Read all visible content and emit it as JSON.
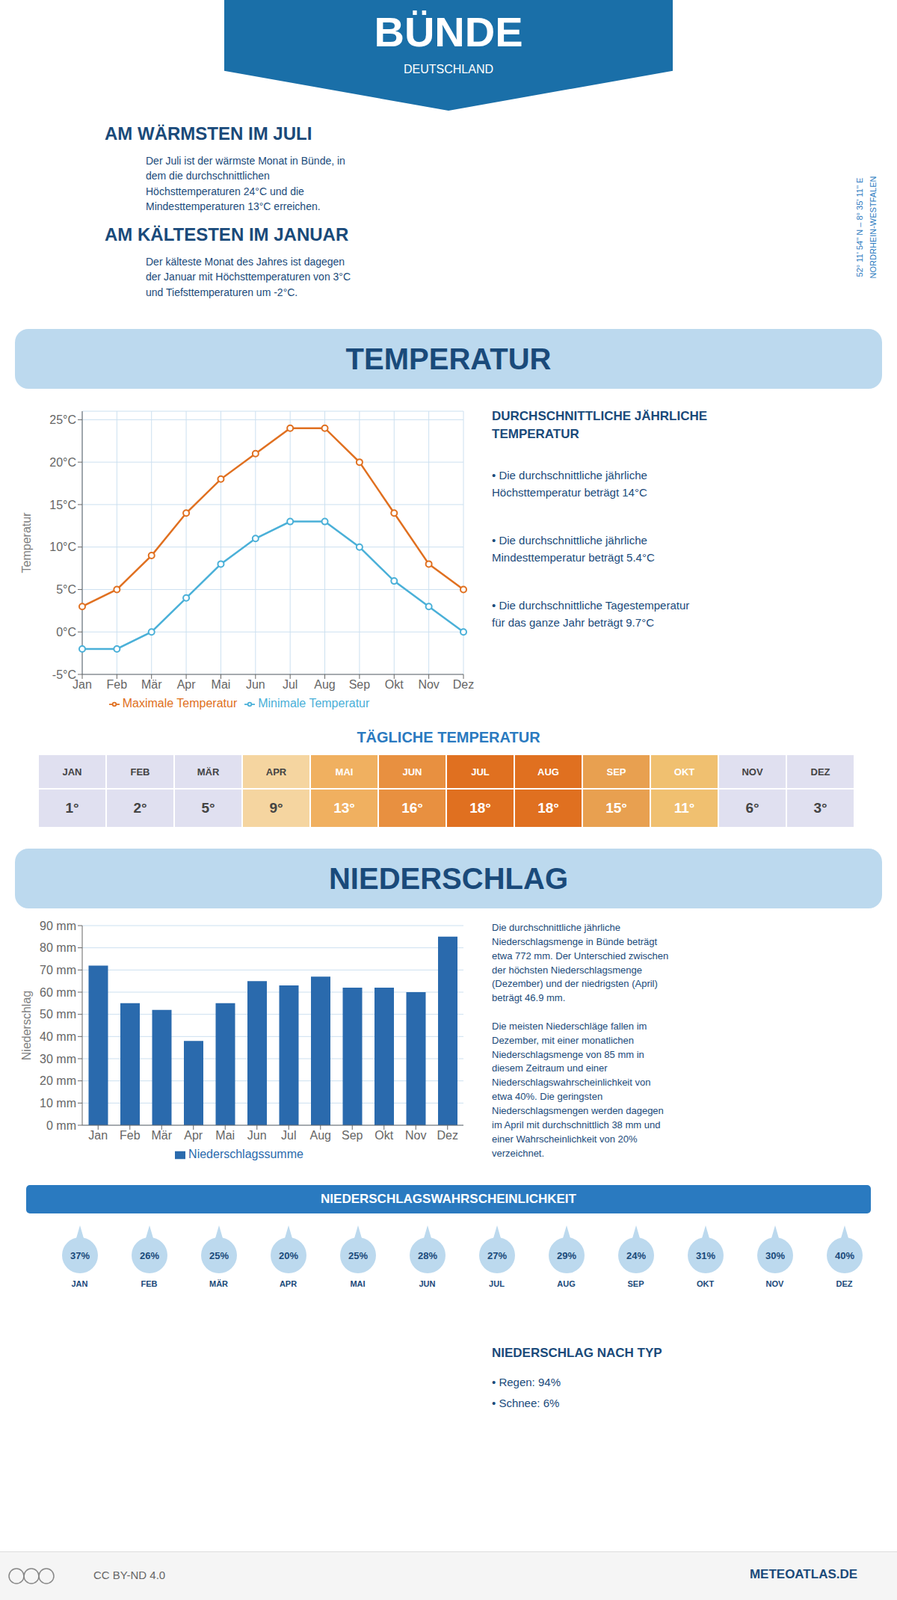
{
  "title": "BÜNDE",
  "subtitle": "DEUTSCHLAND",
  "annotations": [
    "AM WÄRMSTEN IM JULI",
    "Der Juli ist der wärmste Monat in Bünde, in\ndem die durchschnittlichen\nHöchsttemperaturen 24°C und die\nMindesttemperaturen 13°C erreichen.",
    "AM KÄLTESTEN IM JANUAR",
    "Der kälteste Monat des Jahres ist dagegen\nder Januar mit Höchsttemperaturen von 3°C\nund Tiefsttemperaturen um -2°C.",
    "52° 11' 54'' N  –  8° 35' 11'' E",
    "NORDRHEIN-WESTFALEN",
    "METEOATLAS.DE",
    "CC BY-ND 4.0"
  ],
  "chart_data": [
    {
      "type": "line",
      "title": "TEMPERATUR",
      "categories": [
        "Jan",
        "Feb",
        "Mär",
        "Apr",
        "Mai",
        "Jun",
        "Jul",
        "Aug",
        "Sep",
        "Okt",
        "Nov",
        "Dez"
      ],
      "series": [
        {
          "name": "Maximale Temperatur",
          "color": "#e07020",
          "values": [
            3,
            5,
            9,
            14,
            18,
            21,
            24,
            24,
            20,
            14,
            8,
            5
          ]
        },
        {
          "name": "Minimale Temperatur",
          "color": "#4ab0d8",
          "values": [
            -2,
            -2,
            0,
            4,
            8,
            11,
            13,
            13,
            10,
            6,
            3,
            0
          ]
        }
      ],
      "ylabel": "Temperatur",
      "ylim": [
        -5,
        26
      ],
      "yticks": [
        {
          "value": -5,
          "label": "-5°C"
        },
        {
          "value": 0,
          "label": "0°C"
        },
        {
          "value": 5,
          "label": "5°C"
        },
        {
          "value": 10,
          "label": "10°C"
        },
        {
          "value": 15,
          "label": "15°C"
        },
        {
          "value": 20,
          "label": "20°C"
        },
        {
          "value": 25,
          "label": "25°C"
        }
      ],
      "grid": true,
      "legend": "bottom",
      "marker": "circle",
      "annotations": [
        "DURCHSCHNITTLICHE JÄHRLICHE\nTEMPERATUR",
        "• Die durchschnittliche jährliche\nHöchsttemperatur beträgt 14°C",
        "• Die durchschnittliche jährliche\nMindesttemperatur beträgt 5.4°C",
        "• Die durchschnittliche Tagestemperatur\nfür das ganze Jahr beträgt 9.7°C"
      ]
    },
    {
      "type": "table",
      "title": "TÄGLICHE TEMPERATUR",
      "categories": [
        "JAN",
        "FEB",
        "MÄR",
        "APR",
        "MAI",
        "JUN",
        "JUL",
        "AUG",
        "SEP",
        "OKT",
        "NOV",
        "DEZ"
      ],
      "values": [
        1,
        2,
        5,
        9,
        13,
        16,
        18,
        18,
        15,
        11,
        6,
        3
      ],
      "value_labels": [
        "1°",
        "2°",
        "5°",
        "9°",
        "13°",
        "16°",
        "18°",
        "18°",
        "15°",
        "11°",
        "6°",
        "3°"
      ],
      "colors": [
        "#e0e0f0",
        "#e0e0f0",
        "#e0e0f0",
        "#f5d5a0",
        "#f0b060",
        "#e89040",
        "#e07020",
        "#e07020",
        "#e8a050",
        "#f0c070",
        "#e0e0f0",
        "#e0e0f0"
      ],
      "data_labels": true
    },
    {
      "type": "bar",
      "title": "NIEDERSCHLAG",
      "categories": [
        "Jan",
        "Feb",
        "Mär",
        "Apr",
        "Mai",
        "Jun",
        "Jul",
        "Aug",
        "Sep",
        "Okt",
        "Nov",
        "Dez"
      ],
      "series": [
        {
          "name": "Niederschlagssumme",
          "color": "#2a6aad",
          "values": [
            72,
            55,
            52,
            38,
            55,
            65,
            63,
            67,
            62,
            62,
            60,
            85
          ]
        }
      ],
      "ylabel": "Niederschlag",
      "ylim": [
        0,
        90
      ],
      "yticks": [
        {
          "value": 0,
          "label": "0 mm"
        },
        {
          "value": 10,
          "label": "10 mm"
        },
        {
          "value": 20,
          "label": "20 mm"
        },
        {
          "value": 30,
          "label": "30 mm"
        },
        {
          "value": 40,
          "label": "40 mm"
        },
        {
          "value": 50,
          "label": "50 mm"
        },
        {
          "value": 60,
          "label": "60 mm"
        },
        {
          "value": 70,
          "label": "70 mm"
        },
        {
          "value": 80,
          "label": "80 mm"
        },
        {
          "value": 90,
          "label": "90 mm"
        }
      ],
      "grid": "y",
      "legend": "bottom",
      "annotations": [
        "Die durchschnittliche jährliche\nNiederschlagsmenge in Bünde beträgt\netwa 772 mm. Der Unterschied zwischen\nder höchsten Niederschlagsmenge\n(Dezember) und der niedrigsten (April)\nbeträgt 46.9 mm.\n\nDie meisten Niederschläge fallen im\nDezember, mit einer monatlichen\nNiederschlagsmenge von 85 mm in\ndiesem Zeitraum und einer\nNiederschlagswahrscheinlichkeit von\netwa 40%. Die geringsten\nNiederschlagsmengen werden dagegen\nim April mit durchschnittlich 38 mm und\neiner Wahrscheinlichkeit von 20%\nverzeichnet."
      ]
    },
    {
      "type": "pictogram",
      "title": "NIEDERSCHLAGSWAHRSCHEINLICHKEIT",
      "categories": [
        "JAN",
        "FEB",
        "MÄR",
        "APR",
        "MAI",
        "JUN",
        "JUL",
        "AUG",
        "SEP",
        "OKT",
        "NOV",
        "DEZ"
      ],
      "values": [
        37,
        26,
        25,
        20,
        25,
        28,
        27,
        29,
        24,
        31,
        30,
        40
      ],
      "value_labels": [
        "37%",
        "26%",
        "25%",
        "20%",
        "25%",
        "28%",
        "27%",
        "29%",
        "24%",
        "31%",
        "30%",
        "40%"
      ],
      "color": "#bcd9ee",
      "data_labels": true,
      "annotations": [
        "NIEDERSCHLAG NACH TYP",
        "• Regen: 94%",
        "• Schnee: 6%"
      ]
    }
  ]
}
